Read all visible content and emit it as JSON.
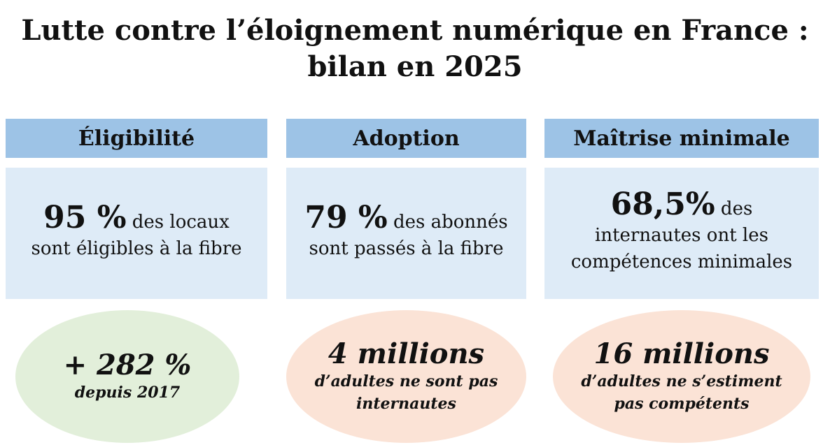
{
  "title": {
    "line1": "Lutte contre l’éloignement numérique en France :",
    "line2": "bilan en 2025"
  },
  "columns": [
    {
      "header": "Éligibilité",
      "stat_value": "95 %",
      "stat_text_a": " des locaux",
      "stat_text_b": "sont éligibles à la fibre",
      "ellipse_big": "+ 282 %",
      "ellipse_small_a": "depuis 2017",
      "ellipse_small_b": ""
    },
    {
      "header": "Adoption",
      "stat_value": "79 %",
      "stat_text_a": " des abonnés",
      "stat_text_b": "sont passés à la fibre",
      "ellipse_big": "4 millions",
      "ellipse_small_a": "d’adultes ne sont pas",
      "ellipse_small_b": "internautes"
    },
    {
      "header": "Maîtrise minimale",
      "stat_value": "68,5%",
      "stat_text_a": " des",
      "stat_text_b": "internautes ont les",
      "stat_text_c": "compétences minimales",
      "ellipse_big": "16 millions",
      "ellipse_small_a": "d’adultes ne s’estiment",
      "ellipse_small_b": "pas compétents"
    }
  ],
  "colors": {
    "header_blue": "#9dc3e6",
    "box_blue": "#deebf7",
    "ellipse_green": "#e2efda",
    "ellipse_peach": "#fbe3d6"
  }
}
